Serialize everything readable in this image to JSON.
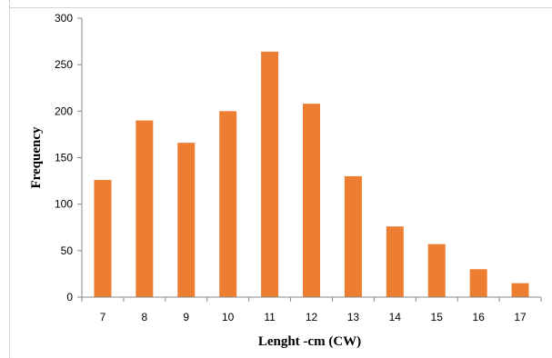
{
  "chart_data": {
    "type": "bar",
    "categories": [
      "7",
      "8",
      "9",
      "10",
      "11",
      "12",
      "13",
      "14",
      "15",
      "16",
      "17"
    ],
    "values": [
      126,
      190,
      166,
      200,
      264,
      208,
      130,
      76,
      57,
      30,
      15
    ],
    "title": "",
    "xlabel": "Lenght -cm (CW)",
    "ylabel": "Frequency",
    "ylim": [
      0,
      300
    ],
    "yticks": [
      "0",
      "50",
      "100",
      "150",
      "200",
      "250",
      "300"
    ],
    "grid": false,
    "legend": "none",
    "bar_color": "#ED7D31"
  }
}
